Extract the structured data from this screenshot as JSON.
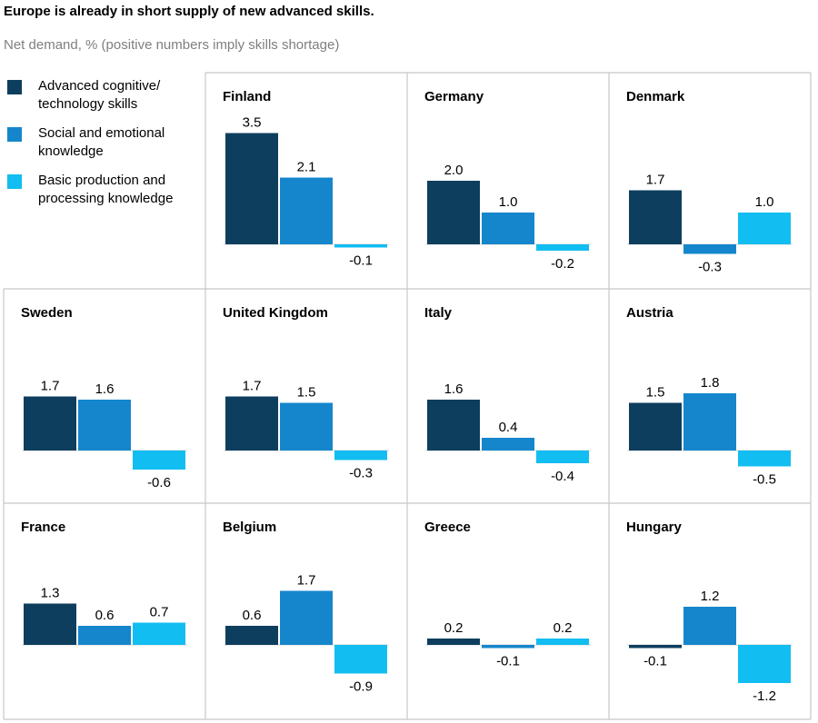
{
  "title": "Europe is already in short supply of new advanced skills.",
  "subtitle": "Net demand, % (positive numbers imply skills shortage)",
  "colors": {
    "advanced": "#0e3e5e",
    "social": "#1586cc",
    "basic": "#12bdf1",
    "grid_line": "#c8c8c8"
  },
  "legend": [
    {
      "name": "Advanced cognitive/ technology skills",
      "color_key": "advanced"
    },
    {
      "name": "Social and emotional knowledge",
      "color_key": "social"
    },
    {
      "name": "Basic production and processing knowledge",
      "color_key": "basic"
    }
  ],
  "chart_data": {
    "type": "bar",
    "layout": "small-multiples",
    "title": "Europe is already in short supply of new advanced skills.",
    "subtitle": "Net demand, % (positive numbers imply skills shortage)",
    "series_names": [
      "Advanced cognitive/ technology skills",
      "Social and emotional knowledge",
      "Basic production and processing knowledge"
    ],
    "panels": [
      {
        "country": "Finland",
        "values": [
          3.5,
          2.1,
          -0.1
        ],
        "labels": [
          "3.5",
          "2.1",
          "-0.1"
        ]
      },
      {
        "country": "Germany",
        "values": [
          2.0,
          1.0,
          -0.2
        ],
        "labels": [
          "2.0",
          "1.0",
          "-0.2"
        ]
      },
      {
        "country": "Denmark",
        "values": [
          1.7,
          -0.3,
          1.0
        ],
        "labels": [
          "1.7",
          "-0.3",
          "1.0"
        ]
      },
      {
        "country": "Sweden",
        "values": [
          1.7,
          1.6,
          -0.6
        ],
        "labels": [
          "1.7",
          "1.6",
          "-0.6"
        ]
      },
      {
        "country": "United Kingdom",
        "values": [
          1.7,
          1.5,
          -0.3
        ],
        "labels": [
          "1.7",
          "1.5",
          "-0.3"
        ]
      },
      {
        "country": "Italy",
        "values": [
          1.6,
          0.4,
          -0.4
        ],
        "labels": [
          "1.6",
          "0.4",
          "-0.4"
        ]
      },
      {
        "country": "Austria",
        "values": [
          1.5,
          1.8,
          -0.5
        ],
        "labels": [
          "1.5",
          "1.8",
          "-0.5"
        ]
      },
      {
        "country": "France",
        "values": [
          1.3,
          0.6,
          0.7
        ],
        "labels": [
          "1.3",
          "0.6",
          "0.7"
        ]
      },
      {
        "country": "Belgium",
        "values": [
          0.6,
          1.7,
          -0.9
        ],
        "labels": [
          "0.6",
          "1.7",
          "-0.9"
        ]
      },
      {
        "country": "Greece",
        "values": [
          0.2,
          -0.1,
          0.2
        ],
        "labels": [
          "0.2",
          "-0.1",
          "0.2"
        ]
      },
      {
        "country": "Hungary",
        "values": [
          -0.1,
          1.2,
          -1.2
        ],
        "labels": [
          "-0.1",
          "1.2",
          "-1.2"
        ]
      }
    ]
  }
}
